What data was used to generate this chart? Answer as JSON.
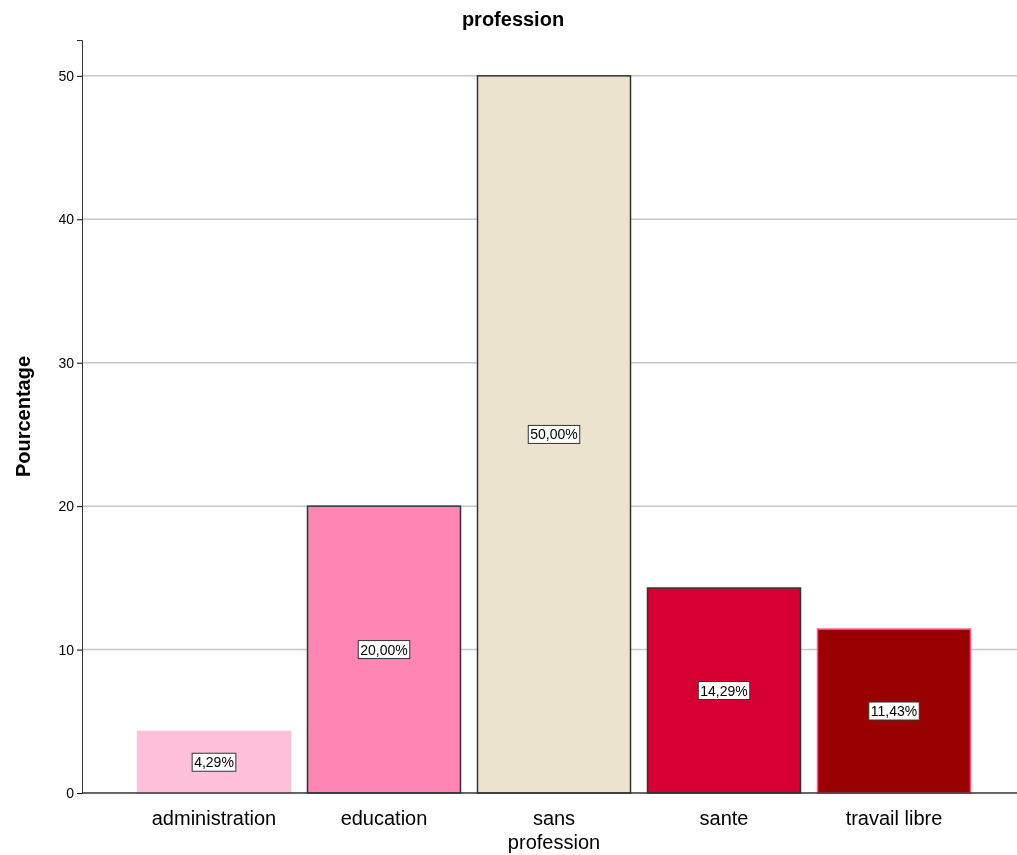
{
  "chart_data": {
    "type": "bar",
    "title": "profession",
    "ylabel": "Pourcentage",
    "categories": [
      "administration",
      "education",
      "sans profession",
      "sante",
      "travail libre"
    ],
    "values": [
      4.29,
      20.0,
      50.0,
      14.29,
      11.43
    ],
    "colors": [
      "#ffc0dc",
      "#ff85b4",
      "#ebe3cd",
      "#d60032",
      "#990000"
    ],
    "value_labels": [
      "4,29%",
      "20,00%",
      "50,00%",
      "14,29%",
      "11,43%"
    ],
    "ylim": [
      0,
      52.5
    ],
    "yticks": [
      0,
      10,
      20,
      30,
      40,
      50
    ],
    "grid": "y"
  }
}
